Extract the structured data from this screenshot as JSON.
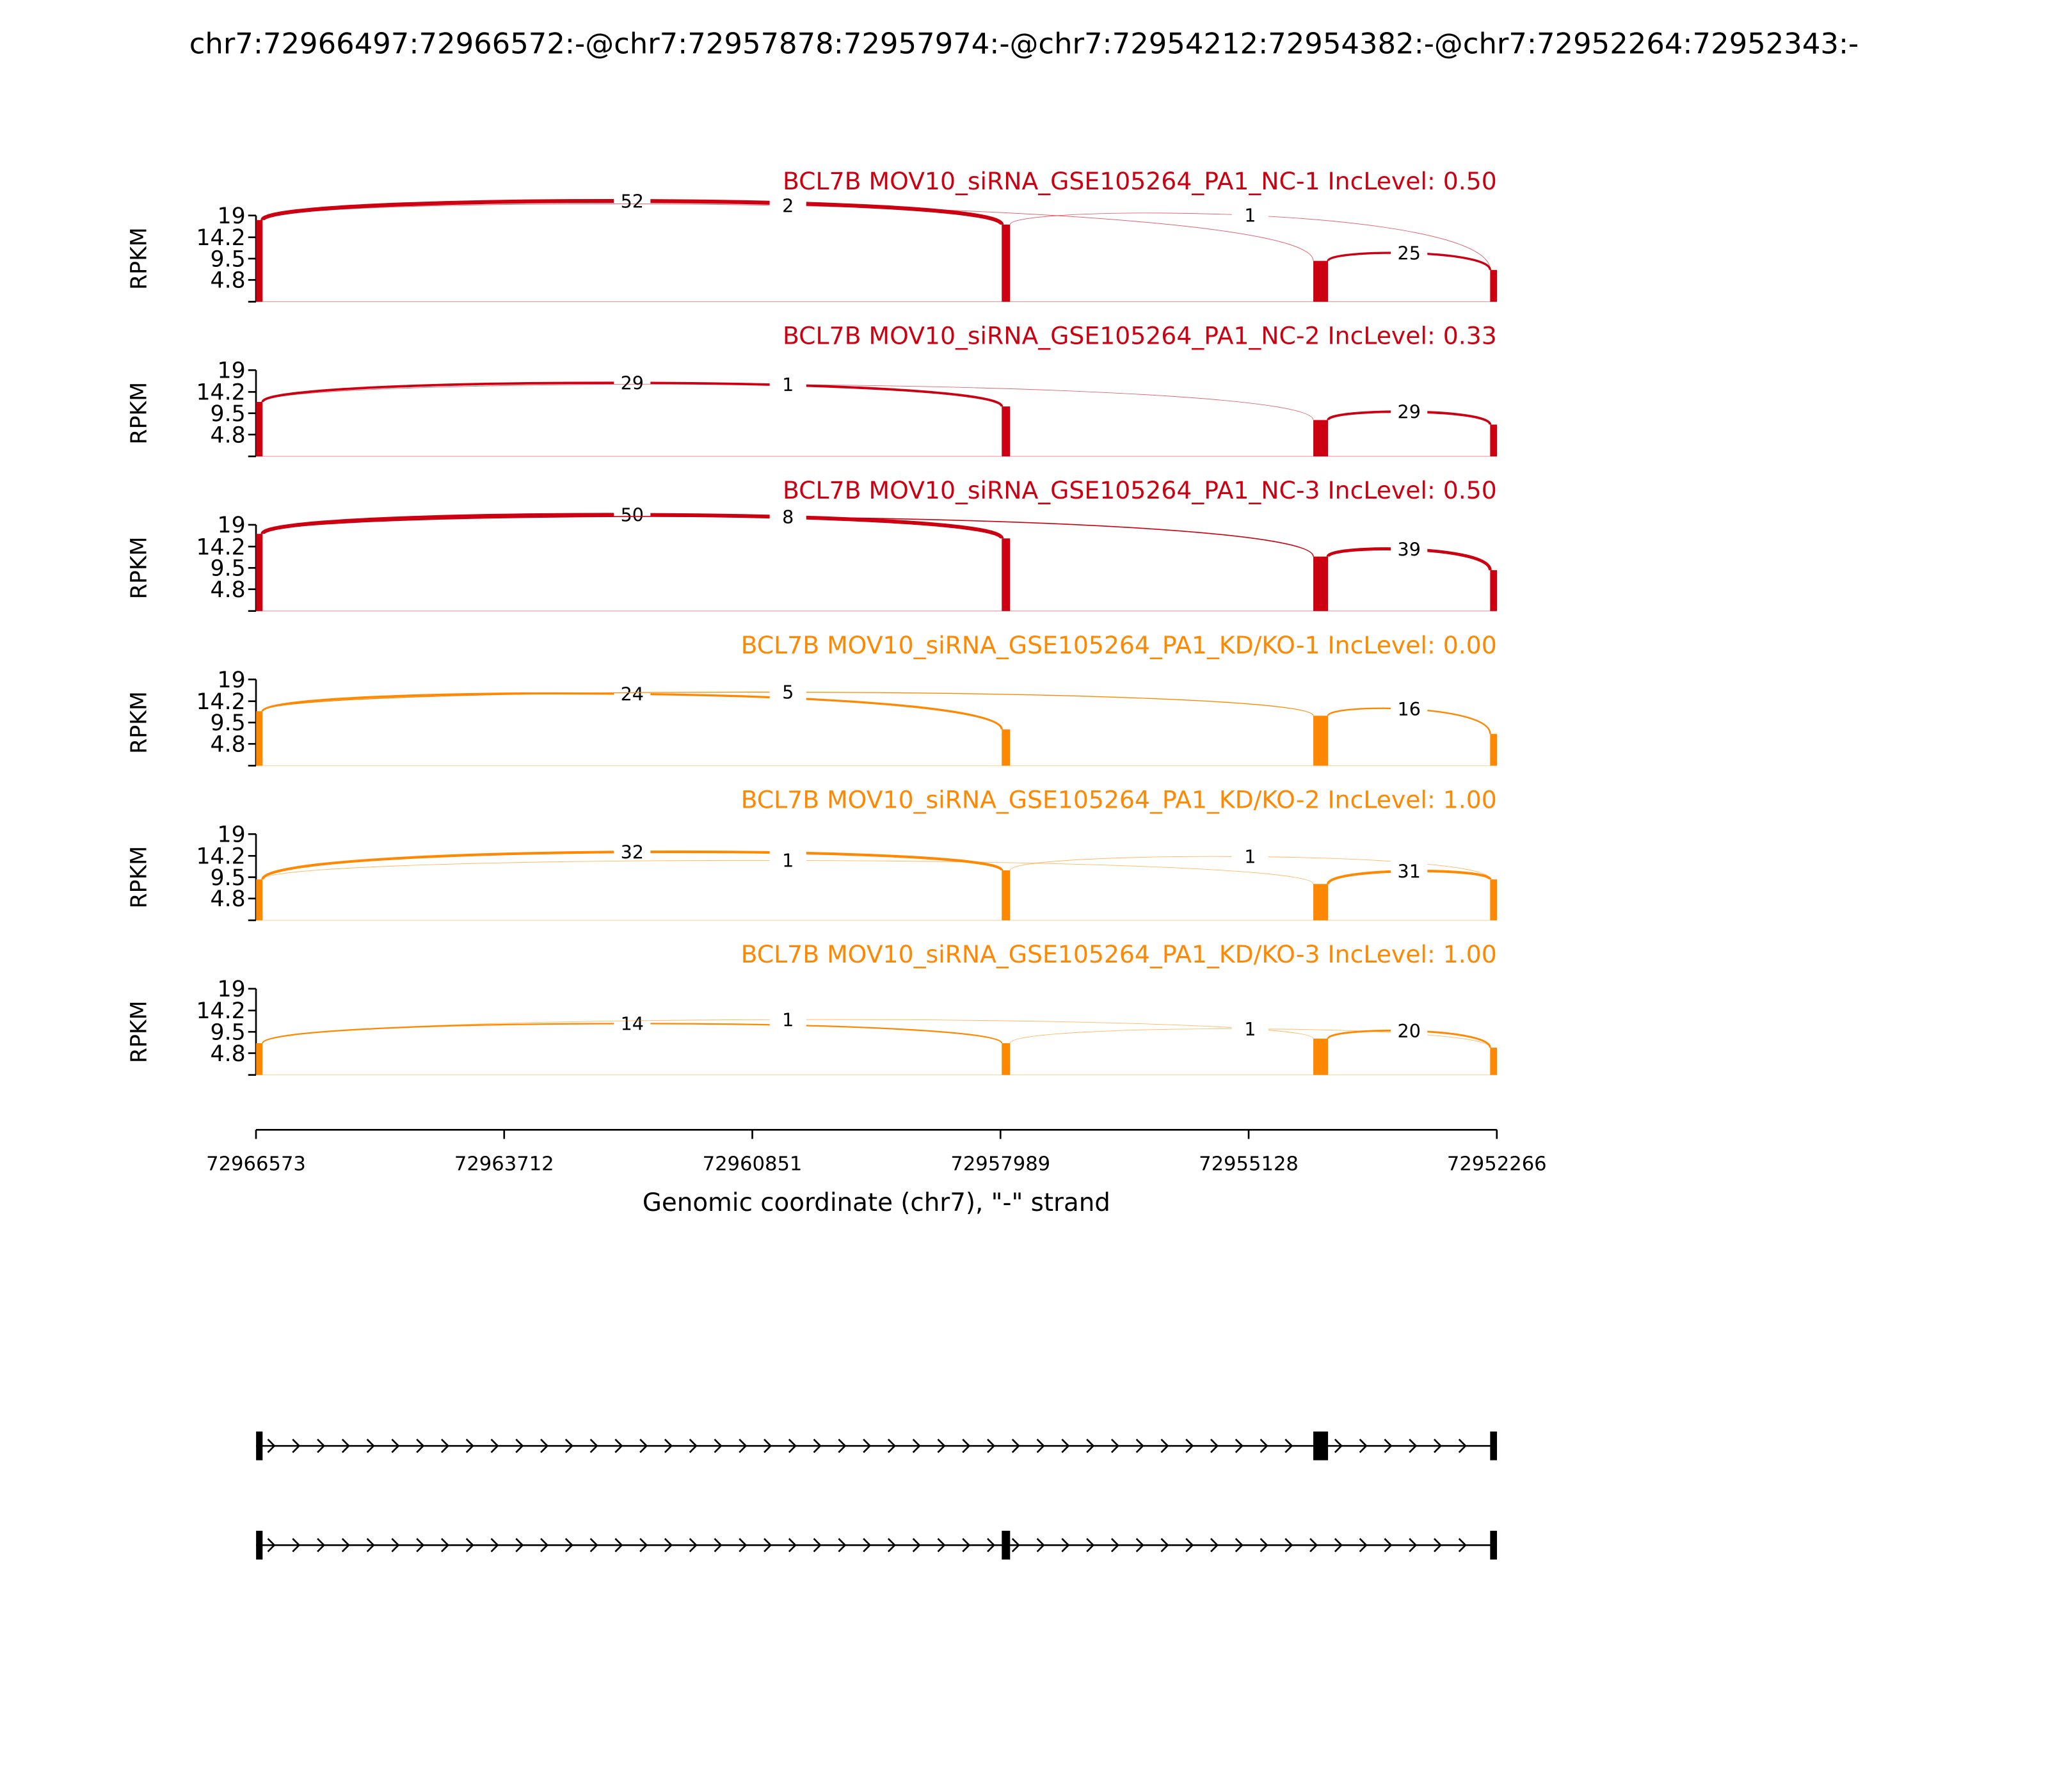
{
  "chart_data": {
    "type": "sashimi",
    "title": "chr7:72966497:72966572:-@chr7:72957878:72957974:-@chr7:72954212:72954382:-@chr7:72952264:72952343:-",
    "ylabel": "RPKM",
    "yticks": [
      "19",
      "14.2",
      "9.5",
      "4.8"
    ],
    "ylim": [
      0,
      19
    ],
    "xlabel": "Genomic coordinate (chr7), \"-\" strand",
    "xlim": [
      72966573,
      72952266
    ],
    "xticks": [
      "72966573",
      "72963712",
      "72960851",
      "72957989",
      "72955128",
      "72952266"
    ],
    "exons": [
      [
        72966497,
        72966572
      ],
      [
        72957878,
        72957974
      ],
      [
        72954212,
        72954382
      ],
      [
        72952264,
        72952343
      ]
    ],
    "colors": {
      "NC": "#cc0011",
      "KD": "#ff8800"
    },
    "panels": [
      {
        "title": "BCL7B MOV10_siRNA_GSE105264_PA1_NC-1 IncLevel: 0.50",
        "group": "NC",
        "coverage": [
          18,
          17,
          9,
          7
        ],
        "junctions": [
          {
            "from": 0,
            "to": 1,
            "count": "52"
          },
          {
            "from": 0,
            "to": 2,
            "count": "2"
          },
          {
            "from": 1,
            "to": 3,
            "count": "1"
          },
          {
            "from": 2,
            "to": 3,
            "count": "25"
          }
        ]
      },
      {
        "title": "BCL7B MOV10_siRNA_GSE105264_PA1_NC-2 IncLevel: 0.33",
        "group": "NC",
        "coverage": [
          12,
          11,
          8,
          7
        ],
        "junctions": [
          {
            "from": 0,
            "to": 1,
            "count": "29"
          },
          {
            "from": 0,
            "to": 2,
            "count": "1"
          },
          {
            "from": 2,
            "to": 3,
            "count": "29"
          }
        ]
      },
      {
        "title": "BCL7B MOV10_siRNA_GSE105264_PA1_NC-3 IncLevel: 0.50",
        "group": "NC",
        "coverage": [
          17,
          16,
          12,
          9
        ],
        "junctions": [
          {
            "from": 0,
            "to": 1,
            "count": "50"
          },
          {
            "from": 0,
            "to": 2,
            "count": "8"
          },
          {
            "from": 2,
            "to": 3,
            "count": "39"
          }
        ]
      },
      {
        "title": "BCL7B MOV10_siRNA_GSE105264_PA1_KD/KO-1 IncLevel: 0.00",
        "group": "KD",
        "coverage": [
          12,
          8,
          11,
          7
        ],
        "junctions": [
          {
            "from": 0,
            "to": 1,
            "count": "24"
          },
          {
            "from": 0,
            "to": 2,
            "count": "5"
          },
          {
            "from": 2,
            "to": 3,
            "count": "16"
          }
        ]
      },
      {
        "title": "BCL7B MOV10_siRNA_GSE105264_PA1_KD/KO-2 IncLevel: 1.00",
        "group": "KD",
        "coverage": [
          9,
          11,
          8,
          9
        ],
        "junctions": [
          {
            "from": 0,
            "to": 1,
            "count": "32"
          },
          {
            "from": 0,
            "to": 2,
            "count": "1"
          },
          {
            "from": 1,
            "to": 3,
            "count": "1"
          },
          {
            "from": 2,
            "to": 3,
            "count": "31"
          }
        ]
      },
      {
        "title": "BCL7B MOV10_siRNA_GSE105264_PA1_KD/KO-3 IncLevel: 1.00",
        "group": "KD",
        "coverage": [
          7,
          7,
          8,
          6
        ],
        "junctions": [
          {
            "from": 0,
            "to": 1,
            "count": "14"
          },
          {
            "from": 0,
            "to": 2,
            "count": "1"
          },
          {
            "from": 1,
            "to": 3,
            "count": "1"
          },
          {
            "from": 2,
            "to": 3,
            "count": "20"
          }
        ]
      }
    ],
    "transcripts": [
      {
        "exons": [
          0,
          2,
          3
        ]
      },
      {
        "exons": [
          0,
          1,
          3
        ]
      }
    ]
  }
}
